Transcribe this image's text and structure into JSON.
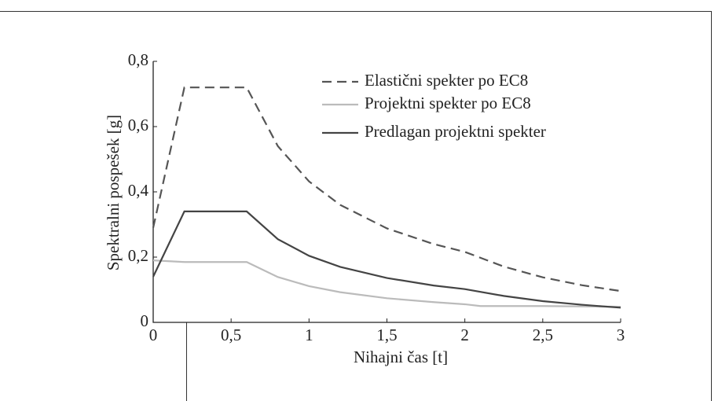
{
  "chart_data": {
    "type": "line",
    "xlabel": "Nihajni čas [t]",
    "ylabel": "Spektralni pospešek [g]",
    "xlim": [
      0,
      3
    ],
    "ylim": [
      0,
      0.8
    ],
    "xticks": [
      0,
      {
        "value": 0.5,
        "label": "0,5"
      },
      1,
      {
        "value": 1.5,
        "label": "1,5"
      },
      2,
      {
        "value": 2.5,
        "label": "2,5"
      },
      3
    ],
    "yticks": [
      0,
      {
        "value": 0.2,
        "label": "0,2"
      },
      {
        "value": 0.4,
        "label": "0,4"
      },
      {
        "value": 0.6,
        "label": "0,6"
      },
      {
        "value": 0.8,
        "label": "0,8"
      }
    ],
    "legend": "upper right",
    "series": [
      {
        "name": "Elastični spekter po EC8",
        "color": "#555555",
        "dashed": true,
        "x": [
          0,
          0.2,
          0.6,
          0.8,
          1,
          1.2,
          1.5,
          1.8,
          2,
          2.25,
          2.5,
          2.75,
          3
        ],
        "values": [
          0.29,
          0.72,
          0.72,
          0.54,
          0.432,
          0.36,
          0.288,
          0.24,
          0.216,
          0.171,
          0.138,
          0.114,
          0.096
        ]
      },
      {
        "name": "Projektni spekter po EC8",
        "color": "#bbbbbb",
        "dashed": false,
        "x": [
          0,
          0.2,
          0.6,
          0.8,
          1,
          1.2,
          1.5,
          1.8,
          2,
          2.1,
          2.5,
          3
        ],
        "values": [
          0.19,
          0.185,
          0.185,
          0.139,
          0.111,
          0.0925,
          0.074,
          0.062,
          0.0555,
          0.05,
          0.05,
          0.048
        ]
      },
      {
        "name": "Predlagan projektni spekter",
        "color": "#444444",
        "dashed": false,
        "x": [
          0,
          0.2,
          0.6,
          0.8,
          1,
          1.2,
          1.5,
          1.8,
          2,
          2.25,
          2.5,
          2.75,
          3
        ],
        "values": [
          0.14,
          0.34,
          0.34,
          0.255,
          0.204,
          0.17,
          0.136,
          0.113,
          0.102,
          0.081,
          0.065,
          0.054,
          0.045
        ]
      }
    ]
  }
}
